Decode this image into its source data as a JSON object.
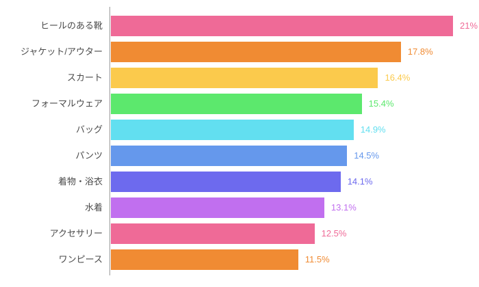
{
  "chart_data": {
    "type": "bar",
    "orientation": "horizontal",
    "title": "",
    "xlabel": "",
    "ylabel": "",
    "xlim": [
      0,
      21
    ],
    "grid": false,
    "legend": false,
    "value_label_position": "right-of-bar",
    "categories": [
      "ヒールのある靴",
      "ジャケット/アウター",
      "スカート",
      "フォーマルウェア",
      "バッグ",
      "パンツ",
      "着物・浴衣",
      "水着",
      "アクセサリー",
      "ワンピース"
    ],
    "values": [
      21,
      17.8,
      16.4,
      15.4,
      14.9,
      14.5,
      14.1,
      13.1,
      12.5,
      11.5
    ],
    "value_labels": [
      "21%",
      "17.8%",
      "16.4%",
      "15.4%",
      "14.9%",
      "14.5%",
      "14.1%",
      "13.1%",
      "12.5%",
      "11.5%"
    ],
    "bar_colors": [
      "#EF6A97",
      "#F08B33",
      "#FBCA4C",
      "#5CE86D",
      "#62DFF0",
      "#6598EC",
      "#6D6AEE",
      "#C16FEF",
      "#EF6A97",
      "#F08B33"
    ],
    "label_color": "#4A4A4A",
    "axis_color": "#9B9B9B"
  }
}
